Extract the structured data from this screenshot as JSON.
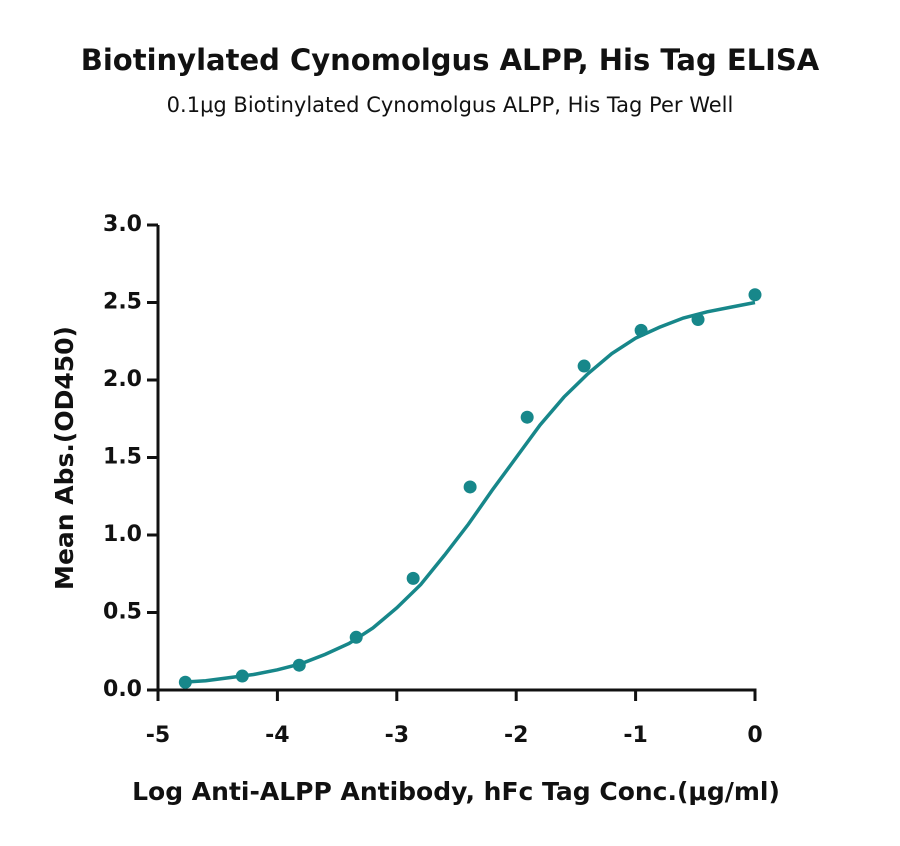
{
  "chart_data": {
    "type": "scatter",
    "title": "Biotinylated Cynomolgus ALPP, His Tag ELISA",
    "subtitle": "0.1μg Biotinylated Cynomolgus ALPP, His Tag Per Well",
    "x_label": "Log Anti-ALPP Antibody, hFc Tag Conc.(μg/ml)",
    "y_label": "Mean Abs.(OD450)",
    "color": "#17878a",
    "x": [
      -4.771,
      -4.294,
      -3.817,
      -3.34,
      -2.863,
      -2.386,
      -1.908,
      -1.431,
      -0.954,
      -0.477,
      0
    ],
    "values": [
      0.05,
      0.09,
      0.16,
      0.34,
      0.72,
      1.31,
      1.76,
      2.09,
      2.32,
      2.39,
      2.55
    ],
    "fit_curve": {
      "x": [
        -4.8,
        -4.6,
        -4.4,
        -4.2,
        -4.0,
        -3.8,
        -3.6,
        -3.4,
        -3.2,
        -3.0,
        -2.8,
        -2.6,
        -2.4,
        -2.2,
        -2.0,
        -1.8,
        -1.6,
        -1.4,
        -1.2,
        -1.0,
        -0.8,
        -0.6,
        -0.4,
        -0.2,
        0
      ],
      "values": [
        0.05,
        0.06,
        0.08,
        0.1,
        0.13,
        0.17,
        0.23,
        0.3,
        0.4,
        0.53,
        0.68,
        0.87,
        1.07,
        1.29,
        1.5,
        1.71,
        1.89,
        2.04,
        2.17,
        2.27,
        2.34,
        2.4,
        2.44,
        2.47,
        2.5
      ]
    },
    "xlim": [
      -5,
      0
    ],
    "xticks": [
      -5,
      -4,
      -3,
      -2,
      -1,
      0
    ],
    "ylim": [
      0,
      3
    ],
    "yticks": [
      {
        "value": 0,
        "label": "0.0"
      },
      0.5,
      {
        "value": 1,
        "label": "1.0"
      },
      1.5,
      {
        "value": 2,
        "label": "2.0"
      },
      2.5,
      {
        "value": 3,
        "label": "3.0"
      }
    ],
    "grid": false
  }
}
